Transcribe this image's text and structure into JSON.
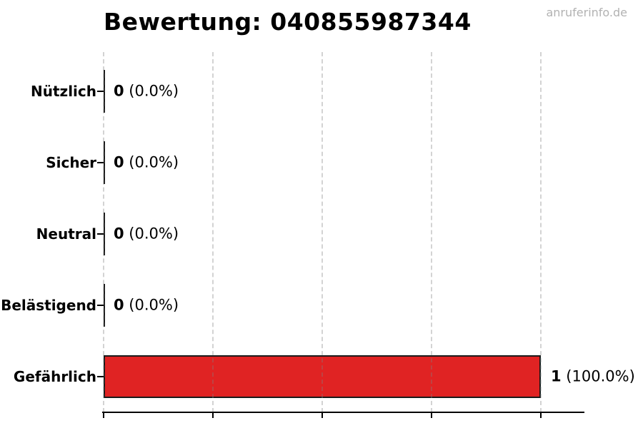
{
  "chart": {
    "title": "Bewertung: 040855987344",
    "watermark": "anruferinfo.de"
  },
  "chart_data": {
    "type": "bar",
    "orientation": "horizontal",
    "title": "Bewertung: 040855987344",
    "categories": [
      "Nützlich",
      "Sicher",
      "Neutral",
      "Belästigend",
      "Gefährlich"
    ],
    "values": [
      0,
      0,
      0,
      0,
      1
    ],
    "counts": [
      "0",
      "0",
      "0",
      "0",
      "1"
    ],
    "percents": [
      "0.0%",
      "0.0%",
      "0.0%",
      "0.0%",
      "100.0%"
    ],
    "value_labels": [
      "0 (0.0%)",
      "0 (0.0%)",
      "0 (0.0%)",
      "0 (0.0%)",
      "1 (100.0%)"
    ],
    "xlabel": "",
    "ylabel": "",
    "xlim": [
      0,
      1.1
    ],
    "x_ticks": [
      0,
      0.25,
      0.5,
      0.75,
      1.0
    ],
    "x_tick_labels_visible": false,
    "grid": "vertical-dashed",
    "legend": "none",
    "bar_color": "#e02323",
    "bar_edge_color": "#1a1a1a",
    "grid_color": "#c8c8c8",
    "watermark": "anruferinfo.de"
  }
}
